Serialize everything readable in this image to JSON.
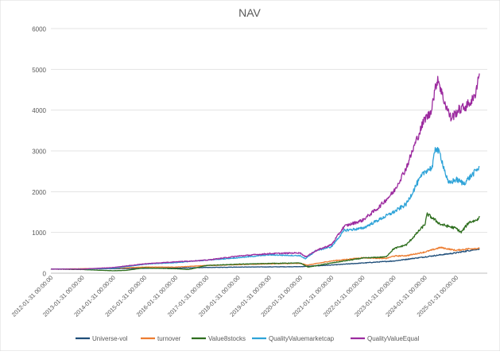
{
  "chart_data": {
    "type": "line",
    "title": "NAV",
    "xlabel": "",
    "ylabel": "",
    "ylim": [
      0,
      6000
    ],
    "y_ticks": [
      0,
      1000,
      2000,
      3000,
      4000,
      5000,
      6000
    ],
    "x_range": [
      "2012-01-31",
      "2026-01-31"
    ],
    "x_tick_labels": [
      "2012-01-31 00:00:00",
      "2013-01-31 00:00:00",
      "2014-01-31 00:00:00",
      "2015-01-31 00:00:00",
      "2016-01-31 00:00:00",
      "2017-01-31 00:00:00",
      "2018-01-31 00:00:00",
      "2019-01-31 00:00:00",
      "2020-01-31 00:00:00",
      "2021-01-31 00:00:00",
      "2022-01-31 00:00:00",
      "2023-01-31 00:00:00",
      "2024-01-31 00:00:00",
      "2025-01-31 00:00:00"
    ],
    "grid": "horizontal",
    "legend_position": "bottom",
    "series": [
      {
        "name": "Universe-vol",
        "color": "#1f4e79",
        "points": [
          [
            "2012-01-31",
            100
          ],
          [
            "2013-01-31",
            105
          ],
          [
            "2014-01-31",
            110
          ],
          [
            "2015-01-31",
            120
          ],
          [
            "2016-01-31",
            125
          ],
          [
            "2017-01-31",
            140
          ],
          [
            "2018-01-31",
            150
          ],
          [
            "2019-01-31",
            155
          ],
          [
            "2020-01-31",
            160
          ],
          [
            "2021-01-31",
            200
          ],
          [
            "2022-01-31",
            250
          ],
          [
            "2023-01-31",
            300
          ],
          [
            "2024-01-31",
            400
          ],
          [
            "2025-01-31",
            500
          ],
          [
            "2025-10-31",
            600
          ]
        ]
      },
      {
        "name": "turnover",
        "color": "#ed7d31",
        "points": [
          [
            "2012-01-31",
            100
          ],
          [
            "2013-01-31",
            110
          ],
          [
            "2014-01-31",
            120
          ],
          [
            "2015-01-31",
            150
          ],
          [
            "2016-01-31",
            150
          ],
          [
            "2017-01-31",
            190
          ],
          [
            "2018-01-31",
            210
          ],
          [
            "2019-01-31",
            230
          ],
          [
            "2020-01-31",
            240
          ],
          [
            "2020-04-30",
            200
          ],
          [
            "2021-01-31",
            300
          ],
          [
            "2022-01-31",
            380
          ],
          [
            "2022-10-31",
            360
          ],
          [
            "2023-01-31",
            420
          ],
          [
            "2023-06-30",
            430
          ],
          [
            "2024-01-31",
            520
          ],
          [
            "2024-07-31",
            630
          ],
          [
            "2025-01-31",
            560
          ],
          [
            "2025-06-30",
            600
          ],
          [
            "2025-10-31",
            610
          ]
        ]
      },
      {
        "name": "Value8stocks",
        "color": "#2e6e1e",
        "points": [
          [
            "2012-01-31",
            100
          ],
          [
            "2013-01-31",
            90
          ],
          [
            "2014-01-31",
            60
          ],
          [
            "2014-06-30",
            70
          ],
          [
            "2015-01-31",
            130
          ],
          [
            "2016-01-31",
            110
          ],
          [
            "2016-06-30",
            90
          ],
          [
            "2017-01-31",
            190
          ],
          [
            "2018-01-31",
            220
          ],
          [
            "2019-01-31",
            240
          ],
          [
            "2020-01-31",
            250
          ],
          [
            "2020-04-30",
            150
          ],
          [
            "2021-01-31",
            250
          ],
          [
            "2021-06-30",
            300
          ],
          [
            "2022-01-31",
            370
          ],
          [
            "2022-10-31",
            400
          ],
          [
            "2023-01-31",
            600
          ],
          [
            "2023-06-30",
            700
          ],
          [
            "2024-01-31",
            1200
          ],
          [
            "2024-02-28",
            1450
          ],
          [
            "2024-04-30",
            1350
          ],
          [
            "2024-07-31",
            1200
          ],
          [
            "2025-01-31",
            1100
          ],
          [
            "2025-03-31",
            1000
          ],
          [
            "2025-06-30",
            1250
          ],
          [
            "2025-09-30",
            1300
          ],
          [
            "2025-10-31",
            1400
          ]
        ]
      },
      {
        "name": "QualityValuemarketcap",
        "color": "#2ea3d8",
        "points": [
          [
            "2012-01-31",
            100
          ],
          [
            "2013-01-31",
            100
          ],
          [
            "2014-01-31",
            120
          ],
          [
            "2015-01-31",
            220
          ],
          [
            "2016-01-31",
            260
          ],
          [
            "2017-01-31",
            320
          ],
          [
            "2018-01-31",
            380
          ],
          [
            "2019-01-31",
            450
          ],
          [
            "2020-01-31",
            430
          ],
          [
            "2020-03-31",
            350
          ],
          [
            "2020-07-31",
            550
          ],
          [
            "2021-01-31",
            650
          ],
          [
            "2021-06-30",
            1050
          ],
          [
            "2022-01-31",
            1100
          ],
          [
            "2022-07-31",
            1300
          ],
          [
            "2023-01-31",
            1500
          ],
          [
            "2023-06-30",
            1700
          ],
          [
            "2023-10-31",
            2200
          ],
          [
            "2024-01-31",
            2500
          ],
          [
            "2024-04-30",
            2600
          ],
          [
            "2024-05-31",
            3100
          ],
          [
            "2024-07-31",
            2900
          ],
          [
            "2024-10-31",
            2200
          ],
          [
            "2025-01-31",
            2300
          ],
          [
            "2025-04-30",
            2200
          ],
          [
            "2025-07-31",
            2400
          ],
          [
            "2025-10-31",
            2600
          ]
        ]
      },
      {
        "name": "QualityValueEqual",
        "color": "#9c2b9f",
        "points": [
          [
            "2012-01-31",
            100
          ],
          [
            "2013-01-31",
            100
          ],
          [
            "2014-01-31",
            140
          ],
          [
            "2015-01-31",
            230
          ],
          [
            "2016-01-31",
            280
          ],
          [
            "2017-01-31",
            320
          ],
          [
            "2018-01-31",
            420
          ],
          [
            "2019-01-31",
            480
          ],
          [
            "2020-01-31",
            500
          ],
          [
            "2020-03-31",
            400
          ],
          [
            "2020-07-31",
            550
          ],
          [
            "2021-01-31",
            700
          ],
          [
            "2021-06-30",
            1150
          ],
          [
            "2022-01-31",
            1300
          ],
          [
            "2022-07-31",
            1600
          ],
          [
            "2023-01-31",
            2000
          ],
          [
            "2023-06-30",
            2600
          ],
          [
            "2023-10-31",
            3300
          ],
          [
            "2024-01-31",
            3800
          ],
          [
            "2024-03-31",
            3900
          ],
          [
            "2024-06-30",
            4800
          ],
          [
            "2024-08-31",
            4300
          ],
          [
            "2024-11-30",
            3800
          ],
          [
            "2025-02-28",
            4000
          ],
          [
            "2025-05-31",
            4100
          ],
          [
            "2025-08-31",
            4300
          ],
          [
            "2025-10-31",
            4900
          ]
        ]
      }
    ]
  }
}
